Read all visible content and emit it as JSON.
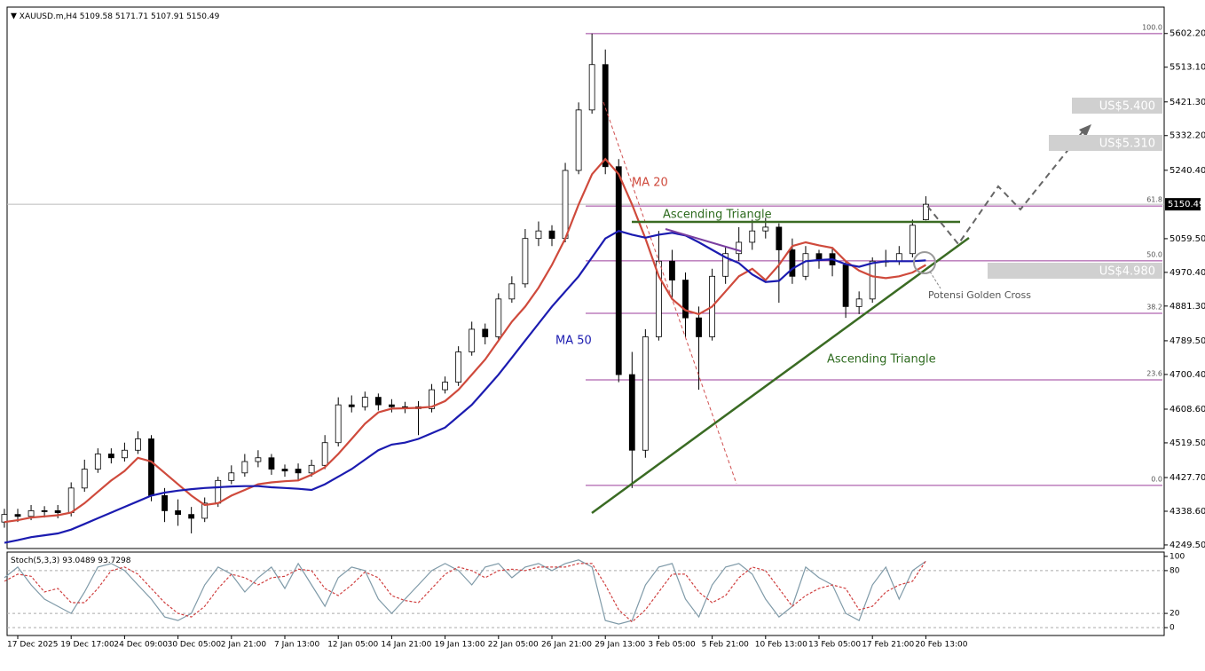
{
  "chart_data": {
    "type": "candlestick",
    "symbol": "XAUUSD.m,H4",
    "categories": [
      null,
      "17 Dec 2025",
      null,
      null,
      null,
      "19 Dec 17:00",
      null,
      null,
      null,
      "24 Dec 09:00",
      null,
      null,
      null,
      "30 Dec 05:00",
      null,
      null,
      null,
      "2 Jan 21:00",
      null,
      null,
      null,
      "7 Jan 13:00",
      null,
      null,
      null,
      "12 Jan 05:00",
      null,
      null,
      null,
      "14 Jan 21:00",
      null,
      null,
      null,
      "19 Jan 13:00",
      null,
      null,
      null,
      "22 Jan 05:00",
      null,
      null,
      null,
      "26 Jan 21:00",
      null,
      null,
      null,
      "29 Jan 13:00",
      null,
      null,
      null,
      "3 Feb 05:00",
      null,
      null,
      null,
      "5 Feb 21:00",
      null,
      null,
      null,
      "10 Feb 13:00",
      null,
      null,
      null,
      "13 Feb 05:00",
      null,
      null,
      null,
      "17 Feb 21:00",
      null,
      null,
      null,
      "20 Feb 13:00"
    ],
    "candles": [
      [
        4310,
        4345,
        4295,
        4330
      ],
      [
        4330,
        4345,
        4310,
        4325
      ],
      [
        4325,
        4355,
        4315,
        4340
      ],
      [
        4340,
        4352,
        4322,
        4338
      ],
      [
        4340,
        4355,
        4320,
        4335
      ],
      [
        4335,
        4415,
        4325,
        4400
      ],
      [
        4400,
        4475,
        4390,
        4450
      ],
      [
        4450,
        4505,
        4440,
        4490
      ],
      [
        4490,
        4505,
        4465,
        4480
      ],
      [
        4480,
        4520,
        4470,
        4500
      ],
      [
        4500,
        4550,
        4490,
        4530
      ],
      [
        4530,
        4540,
        4365,
        4380
      ],
      [
        4380,
        4400,
        4310,
        4340
      ],
      [
        4340,
        4370,
        4300,
        4330
      ],
      [
        4330,
        4350,
        4280,
        4320
      ],
      [
        4320,
        4375,
        4310,
        4360
      ],
      [
        4360,
        4430,
        4350,
        4420
      ],
      [
        4420,
        4460,
        4410,
        4440
      ],
      [
        4440,
        4490,
        4430,
        4470
      ],
      [
        4470,
        4500,
        4455,
        4480
      ],
      [
        4480,
        4490,
        4435,
        4450
      ],
      [
        4450,
        4462,
        4430,
        4445
      ],
      [
        4450,
        4465,
        4420,
        4440
      ],
      [
        4440,
        4475,
        4430,
        4460
      ],
      [
        4460,
        4540,
        4450,
        4520
      ],
      [
        4520,
        4640,
        4510,
        4620
      ],
      [
        4620,
        4645,
        4600,
        4615
      ],
      [
        4615,
        4655,
        4605,
        4640
      ],
      [
        4640,
        4650,
        4605,
        4620
      ],
      [
        4620,
        4635,
        4600,
        4615
      ],
      [
        4615,
        4628,
        4598,
        4612
      ],
      [
        4615,
        4630,
        4540,
        4610
      ],
      [
        4610,
        4675,
        4600,
        4660
      ],
      [
        4660,
        4695,
        4650,
        4680
      ],
      [
        4680,
        4775,
        4670,
        4760
      ],
      [
        4760,
        4840,
        4750,
        4820
      ],
      [
        4820,
        4835,
        4780,
        4800
      ],
      [
        4800,
        4915,
        4790,
        4900
      ],
      [
        4900,
        4960,
        4890,
        4940
      ],
      [
        4940,
        5085,
        4930,
        5060
      ],
      [
        5060,
        5105,
        5040,
        5080
      ],
      [
        5080,
        5095,
        5040,
        5060
      ],
      [
        5060,
        5260,
        5050,
        5240
      ],
      [
        5240,
        5420,
        5230,
        5400
      ],
      [
        5400,
        5602,
        5390,
        5520
      ],
      [
        5520,
        5560,
        5230,
        5250
      ],
      [
        5250,
        5270,
        4680,
        4700
      ],
      [
        4700,
        4760,
        4400,
        4500
      ],
      [
        4500,
        4820,
        4480,
        4800
      ],
      [
        4800,
        5080,
        4790,
        5000
      ],
      [
        5000,
        5030,
        4900,
        4950
      ],
      [
        4950,
        4970,
        4800,
        4850
      ],
      [
        4850,
        4880,
        4660,
        4800
      ],
      [
        4800,
        4980,
        4790,
        4960
      ],
      [
        4960,
        5040,
        4940,
        5020
      ],
      [
        5020,
        5090,
        5000,
        5050
      ],
      [
        5050,
        5110,
        5030,
        5080
      ],
      [
        5080,
        5115,
        5060,
        5090
      ],
      [
        5090,
        5100,
        4890,
        5030
      ],
      [
        5030,
        5060,
        4940,
        4960
      ],
      [
        4960,
        5040,
        4950,
        5020
      ],
      [
        5020,
        5030,
        4980,
        5005
      ],
      [
        5020,
        5035,
        4960,
        4990
      ],
      [
        4990,
        5000,
        4850,
        4880
      ],
      [
        4880,
        4920,
        4860,
        4900
      ],
      [
        4900,
        5010,
        4890,
        5000
      ],
      [
        5000,
        5030,
        4985,
        5000
      ],
      [
        5000,
        5040,
        4990,
        5020
      ],
      [
        5020,
        5110,
        5010,
        5095
      ],
      [
        5109.58,
        5171.71,
        5107.91,
        5150.49
      ]
    ],
    "series": [
      {
        "name": "MA 20",
        "color": "#cf4a3c",
        "values": [
          4310,
          4315,
          4322,
          4325,
          4328,
          4335,
          4360,
          4390,
          4420,
          4445,
          4480,
          4470,
          4440,
          4410,
          4380,
          4355,
          4360,
          4380,
          4395,
          4410,
          4415,
          4418,
          4420,
          4435,
          4455,
          4490,
          4530,
          4570,
          4600,
          4610,
          4611,
          4612,
          4615,
          4630,
          4660,
          4700,
          4740,
          4790,
          4840,
          4880,
          4930,
          4990,
          5060,
          5150,
          5230,
          5270,
          5230,
          5150,
          5060,
          4960,
          4900,
          4870,
          4860,
          4880,
          4920,
          4960,
          4980,
          4950,
          4990,
          5040,
          5050,
          5042,
          5035,
          5000,
          4975,
          4960,
          4955,
          4960,
          4970,
          4990
        ]
      },
      {
        "name": "MA 50",
        "color": "#1b1bb0",
        "values": [
          4255,
          4262,
          4270,
          4275,
          4280,
          4290,
          4305,
          4320,
          4335,
          4350,
          4365,
          4380,
          4388,
          4393,
          4397,
          4400,
          4402,
          4404,
          4405,
          4405,
          4402,
          4400,
          4398,
          4395,
          4410,
          4430,
          4450,
          4475,
          4500,
          4515,
          4520,
          4530,
          4545,
          4560,
          4590,
          4620,
          4660,
          4700,
          4745,
          4790,
          4835,
          4880,
          4920,
          4960,
          5010,
          5060,
          5080,
          5070,
          5062,
          5070,
          5075,
          5068,
          5050,
          5030,
          5010,
          4995,
          4965,
          4945,
          4948,
          4980,
          5000,
          5003,
          5005,
          4992,
          4985,
          4995,
          5000,
          5000,
          5000,
          5002
        ]
      }
    ],
    "ylim": [
      4240,
      5672
    ],
    "yticks": [
      {
        "value": 5602.2,
        "label": "5602.20"
      },
      {
        "value": 5513.1,
        "label": "5513.10"
      },
      {
        "value": 5421.3,
        "label": "5421.30"
      },
      {
        "value": 5332.2,
        "label": "5332.20"
      },
      {
        "value": 5240.4,
        "label": "5240.40"
      },
      {
        "value": 5059.5,
        "label": "5059.50"
      },
      {
        "value": 4970.4,
        "label": "4970.40"
      },
      {
        "value": 4881.3,
        "label": "4881.30"
      },
      {
        "value": 4789.5,
        "label": "4789.50"
      },
      {
        "value": 4700.4,
        "label": "4700.40"
      },
      {
        "value": 4608.6,
        "label": "4608.60"
      },
      {
        "value": 4519.5,
        "label": "4519.50"
      },
      {
        "value": 4427.7,
        "label": "4427.70"
      },
      {
        "value": 4338.6,
        "label": "4338.60"
      },
      {
        "value": 4249.5,
        "label": "4249.50"
      }
    ],
    "fib_levels": [
      {
        "label": "100.0",
        "price": 5602
      },
      {
        "label": "61.8",
        "price": 5146
      },
      {
        "label": "50.0",
        "price": 5001
      },
      {
        "label": "38.2",
        "price": 4862
      },
      {
        "label": "23.6",
        "price": 4686
      },
      {
        "label": "0.0",
        "price": 4407
      }
    ],
    "annotations": {
      "triangle_top": "Ascending Triangle",
      "triangle_bottom": "Ascending Triangle",
      "golden_cross": "Potensi Golden Cross",
      "targets": [
        "US$5.400",
        "US$5.310",
        "US$4.980"
      ]
    },
    "indicator": {
      "name": "Stoch(5,3,3)",
      "type": "line",
      "ylim": [
        -11,
        106
      ],
      "yticks": [
        100,
        80,
        20,
        0
      ],
      "series": [
        {
          "color": "#7f9aa8",
          "values": [
            70,
            85,
            60,
            40,
            30,
            20,
            50,
            85,
            90,
            80,
            60,
            40,
            15,
            10,
            20,
            60,
            85,
            75,
            50,
            70,
            85,
            55,
            90,
            60,
            30,
            70,
            85,
            80,
            40,
            20,
            40,
            60,
            80,
            90,
            80,
            60,
            85,
            90,
            70,
            85,
            90,
            80,
            90,
            95,
            85,
            10,
            5,
            10,
            60,
            85,
            90,
            40,
            15,
            60,
            85,
            90,
            75,
            40,
            15,
            30,
            85,
            70,
            60,
            20,
            10,
            60,
            85,
            40,
            80,
            93.0489
          ]
        },
        {
          "color": "#d04040",
          "values": [
            65,
            75,
            72,
            50,
            55,
            35,
            35,
            55,
            80,
            85,
            75,
            55,
            35,
            20,
            15,
            30,
            55,
            75,
            70,
            60,
            70,
            72,
            82,
            80,
            55,
            45,
            60,
            78,
            70,
            45,
            38,
            35,
            55,
            75,
            85,
            80,
            70,
            80,
            82,
            80,
            85,
            85,
            85,
            90,
            90,
            60,
            25,
            8,
            25,
            50,
            75,
            75,
            50,
            35,
            45,
            70,
            85,
            80,
            55,
            30,
            45,
            55,
            60,
            55,
            25,
            30,
            50,
            60,
            65,
            93.7298
          ]
        }
      ]
    }
  }
}
